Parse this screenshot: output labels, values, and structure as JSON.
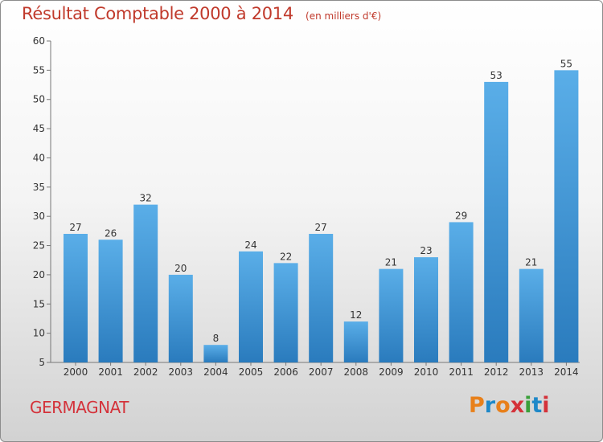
{
  "chart_data": {
    "type": "bar",
    "title": "Résultat Comptable 2000 à 2014",
    "subtitle": "(en milliers d'€)",
    "categories": [
      "2000",
      "2001",
      "2002",
      "2003",
      "2004",
      "2005",
      "2006",
      "2007",
      "2008",
      "2009",
      "2010",
      "2011",
      "2012",
      "2013",
      "2014"
    ],
    "values": [
      27,
      26,
      32,
      20,
      8,
      24,
      22,
      27,
      12,
      21,
      23,
      29,
      53,
      21,
      55
    ],
    "ylim": [
      5,
      60
    ],
    "yticks": [
      5,
      10,
      15,
      20,
      25,
      30,
      35,
      40,
      45,
      50,
      55,
      60
    ],
    "grid": false,
    "bar_color": "#3d93d6"
  },
  "commune": "GERMAGNAT",
  "logo": {
    "text": "Proxiti",
    "letter_colors": [
      "#e8801a",
      "#1e88c8",
      "#e8801a",
      "#d4323a",
      "#3aa03a",
      "#1e88c8",
      "#d4323a"
    ]
  }
}
